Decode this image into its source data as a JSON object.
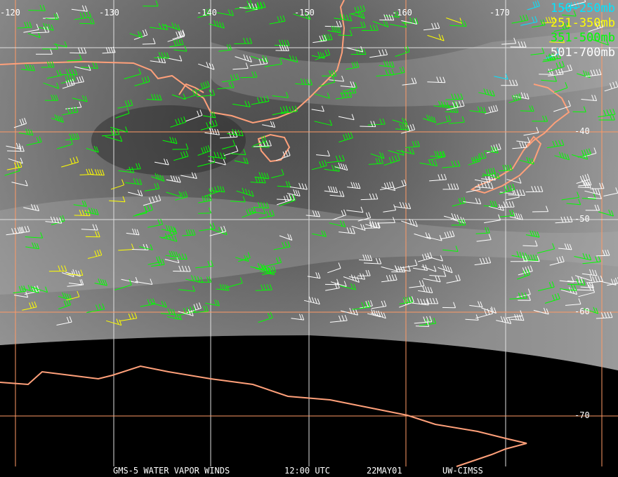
{
  "product": {
    "satellite": "GMS-5 WATER VAPOR WINDS",
    "time": "12:00 UTC",
    "date": "22MAY01",
    "source": "UW-CIMSS"
  },
  "legend": [
    {
      "label": "150-250mb",
      "color": "#00e5ff"
    },
    {
      "label": "251-350mb",
      "color": "#ffff00"
    },
    {
      "label": "351-500mb",
      "color": "#00ff00"
    },
    {
      "label": "501-700mb",
      "color": "#ffffff"
    }
  ],
  "longitude_labels": [
    "-120",
    "-130",
    "-140",
    "-150",
    "-160",
    "-170"
  ],
  "latitude_labels": [
    "-40",
    "-50",
    "-60",
    "-70"
  ],
  "colors": {
    "grid_orange": "#ff9a66",
    "grid_white": "#e0e0e0",
    "coastline": "#ffa07a"
  }
}
